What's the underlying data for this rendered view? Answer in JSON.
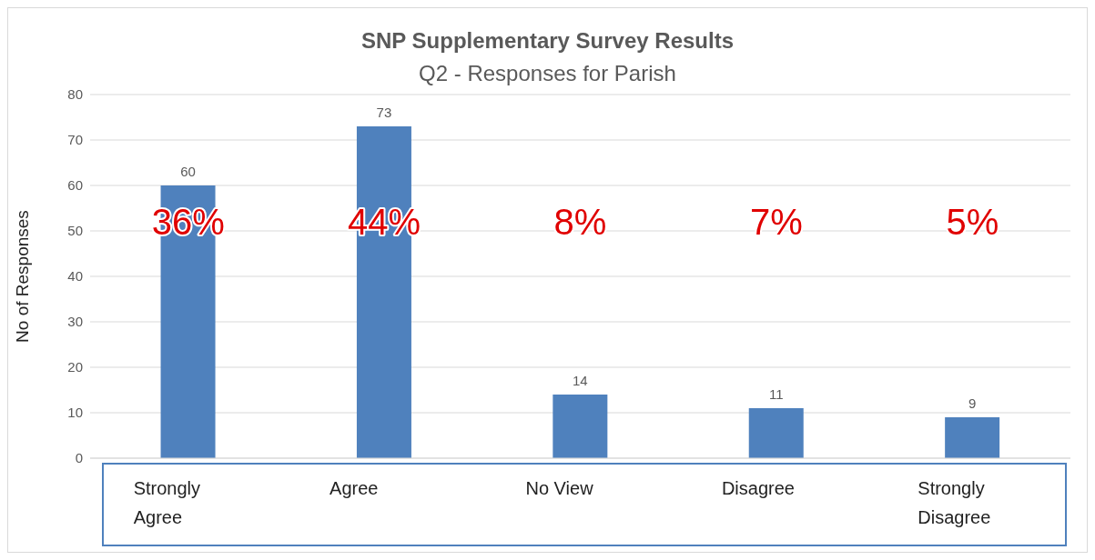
{
  "chart_data": {
    "type": "bar",
    "title": "SNP Supplementary Survey Results",
    "subtitle": "Q2 - Responses for Parish",
    "ylabel": "No of Responses",
    "categories": [
      "Strongly Agree",
      "Agree",
      "No View",
      "Disagree",
      "Strongly Disagree"
    ],
    "values": [
      60,
      73,
      14,
      11,
      9
    ],
    "color": "#4f81bd",
    "data_labels": true,
    "ylim": [
      0,
      80
    ],
    "yticks": [
      0,
      10,
      20,
      30,
      40,
      50,
      60,
      70,
      80
    ],
    "grid": "y",
    "annotations": [
      "36%",
      "44%",
      "8%",
      "7%",
      "5%"
    ]
  }
}
